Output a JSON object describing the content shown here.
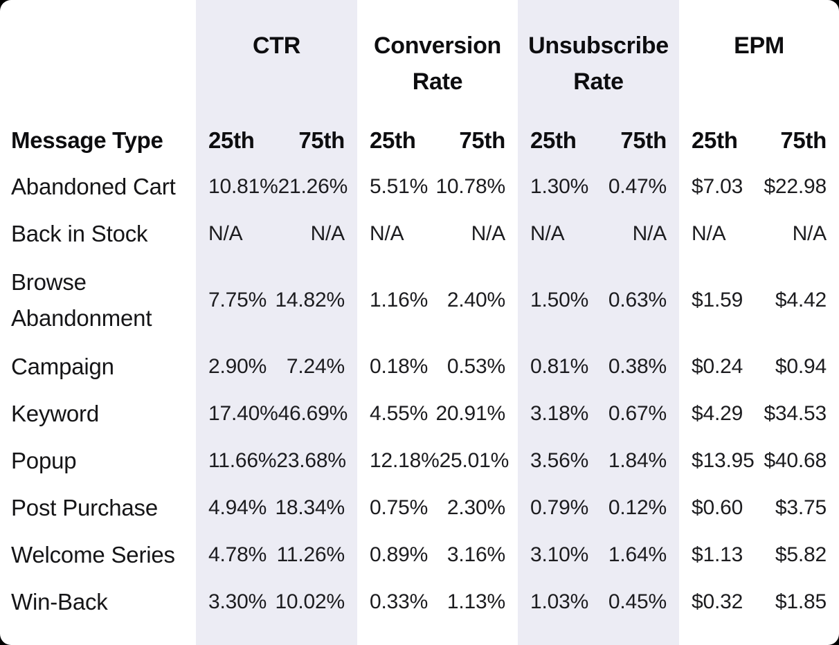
{
  "page": {
    "outer_background": "#000000",
    "card_background": "#ffffff",
    "stripe_color": "#ececf4",
    "heading_text_color": "#0d0d0f",
    "value_text_color": "#1c1c1f"
  },
  "chart_data": {
    "type": "table",
    "row_header": "Message Type",
    "sub_columns": [
      "25th",
      "75th"
    ],
    "column_groups": [
      {
        "label": "CTR",
        "shaded": true
      },
      {
        "label": "Conversion Rate",
        "shaded": false
      },
      {
        "label": "Unsubscribe Rate",
        "shaded": true
      },
      {
        "label": "EPM",
        "shaded": false
      }
    ],
    "rows": [
      {
        "label": "Abandoned Cart",
        "ctr": [
          "10.81%",
          "21.26%"
        ],
        "conversion_rate": [
          "5.51%",
          "10.78%"
        ],
        "unsubscribe_rate": [
          "1.30%",
          "0.47%"
        ],
        "epm": [
          "$7.03",
          "$22.98"
        ]
      },
      {
        "label": "Back in Stock",
        "ctr": [
          "N/A",
          "N/A"
        ],
        "conversion_rate": [
          "N/A",
          "N/A"
        ],
        "unsubscribe_rate": [
          "N/A",
          "N/A"
        ],
        "epm": [
          "N/A",
          "N/A"
        ]
      },
      {
        "label": "Browse Abandonment",
        "ctr": [
          "7.75%",
          "14.82%"
        ],
        "conversion_rate": [
          "1.16%",
          "2.40%"
        ],
        "unsubscribe_rate": [
          "1.50%",
          "0.63%"
        ],
        "epm": [
          "$1.59",
          "$4.42"
        ]
      },
      {
        "label": "Campaign",
        "ctr": [
          "2.90%",
          "7.24%"
        ],
        "conversion_rate": [
          "0.18%",
          "0.53%"
        ],
        "unsubscribe_rate": [
          "0.81%",
          "0.38%"
        ],
        "epm": [
          "$0.24",
          "$0.94"
        ]
      },
      {
        "label": "Keyword",
        "ctr": [
          "17.40%",
          "46.69%"
        ],
        "conversion_rate": [
          "4.55%",
          "20.91%"
        ],
        "unsubscribe_rate": [
          "3.18%",
          "0.67%"
        ],
        "epm": [
          "$4.29",
          "$34.53"
        ]
      },
      {
        "label": "Popup",
        "ctr": [
          "11.66%",
          "23.68%"
        ],
        "conversion_rate": [
          "12.18%",
          "25.01%"
        ],
        "unsubscribe_rate": [
          "3.56%",
          "1.84%"
        ],
        "epm": [
          "$13.95",
          "$40.68"
        ]
      },
      {
        "label": "Post Purchase",
        "ctr": [
          "4.94%",
          "18.34%"
        ],
        "conversion_rate": [
          "0.75%",
          "2.30%"
        ],
        "unsubscribe_rate": [
          "0.79%",
          "0.12%"
        ],
        "epm": [
          "$0.60",
          "$3.75"
        ]
      },
      {
        "label": "Welcome Series",
        "ctr": [
          "4.78%",
          "11.26%"
        ],
        "conversion_rate": [
          "0.89%",
          "3.16%"
        ],
        "unsubscribe_rate": [
          "3.10%",
          "1.64%"
        ],
        "epm": [
          "$1.13",
          "$5.82"
        ]
      },
      {
        "label": "Win-Back",
        "ctr": [
          "3.30%",
          "10.02%"
        ],
        "conversion_rate": [
          "0.33%",
          "1.13%"
        ],
        "unsubscribe_rate": [
          "1.03%",
          "0.45%"
        ],
        "epm": [
          "$0.32",
          "$1.85"
        ]
      }
    ]
  }
}
